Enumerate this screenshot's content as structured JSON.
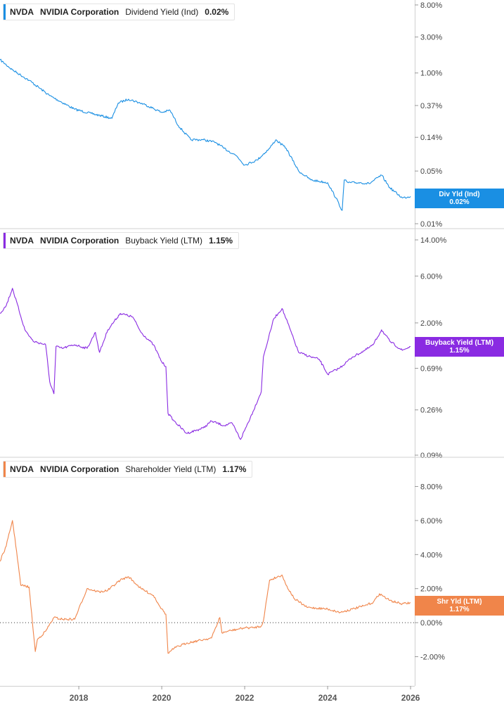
{
  "x_axis": {
    "tick_labels": [
      "2018",
      "2020",
      "2022",
      "2024",
      "2026"
    ],
    "range": [
      2016.1,
      2026.1
    ]
  },
  "chart_data": [
    {
      "type": "line",
      "ticker": "NVDA",
      "company": "NVIDIA Corporation",
      "metric": "Dividend Yield (Ind)",
      "current_value": "0.02%",
      "tag_label": "Div Yld (Ind)",
      "color": "#1a8fe3",
      "y_scale": "log",
      "y_ticks": [
        8.0,
        3.0,
        1.0,
        0.37,
        0.14,
        0.05,
        0.02,
        0.01
      ],
      "y_tick_labels": [
        "8.00%",
        "3.00%",
        "1.00%",
        "0.37%",
        "0.14%",
        "0.05%",
        "0.02%",
        "0.01%"
      ],
      "ylim": [
        0.01,
        8.0
      ],
      "series": [
        {
          "name": "Div Yld (Ind)",
          "x": [
            2016.1,
            2016.4,
            2016.8,
            2017.3,
            2017.9,
            2018.3,
            2018.8,
            2018.95,
            2019.2,
            2019.6,
            2020.0,
            2020.2,
            2020.4,
            2020.7,
            2021.0,
            2021.3,
            2021.5,
            2021.8,
            2022.0,
            2022.3,
            2022.6,
            2022.75,
            2023.0,
            2023.3,
            2023.6,
            2024.0,
            2024.2,
            2024.35,
            2024.4,
            2024.5,
            2024.8,
            2025.0,
            2025.3,
            2025.5,
            2025.8,
            2026.0
          ],
          "y": [
            1.5,
            1.1,
            0.8,
            0.5,
            0.33,
            0.29,
            0.25,
            0.4,
            0.45,
            0.38,
            0.3,
            0.32,
            0.2,
            0.13,
            0.13,
            0.12,
            0.1,
            0.08,
            0.06,
            0.07,
            0.1,
            0.13,
            0.1,
            0.05,
            0.038,
            0.035,
            0.022,
            0.015,
            0.038,
            0.035,
            0.035,
            0.034,
            0.044,
            0.03,
            0.022,
            0.023
          ]
        }
      ]
    },
    {
      "type": "line",
      "ticker": "NVDA",
      "company": "NVIDIA Corporation",
      "metric": "Buyback Yield (LTM)",
      "current_value": "1.15%",
      "tag_label": "Buyback Yield (LTM)",
      "color": "#8a2be2",
      "y_scale": "log",
      "y_ticks": [
        14.0,
        6.0,
        2.0,
        0.69,
        0.26,
        0.09
      ],
      "y_tick_labels": [
        "14.00%",
        "6.00%",
        "2.00%",
        "0.69%",
        "0.26%",
        "0.09%"
      ],
      "ylim": [
        0.09,
        14.0
      ],
      "series": [
        {
          "name": "Buyback Yield (LTM)",
          "x": [
            2016.1,
            2016.25,
            2016.4,
            2016.7,
            2016.9,
            2017.2,
            2017.3,
            2017.4,
            2017.45,
            2017.6,
            2017.9,
            2018.2,
            2018.4,
            2018.5,
            2018.7,
            2019.0,
            2019.3,
            2019.5,
            2019.8,
            2020.0,
            2020.1,
            2020.15,
            2020.3,
            2020.6,
            2021.0,
            2021.2,
            2021.5,
            2021.7,
            2021.9,
            2022.2,
            2022.4,
            2022.45,
            2022.7,
            2022.9,
            2023.0,
            2023.3,
            2023.6,
            2023.8,
            2024.0,
            2024.3,
            2024.6,
            2024.9,
            2025.1,
            2025.3,
            2025.5,
            2025.8,
            2026.0
          ],
          "y": [
            2.5,
            3.0,
            4.5,
            1.7,
            1.3,
            1.2,
            0.5,
            0.38,
            1.15,
            1.1,
            1.2,
            1.1,
            1.6,
            1.0,
            1.7,
            2.5,
            2.3,
            1.6,
            1.2,
            0.8,
            0.72,
            0.24,
            0.2,
            0.15,
            0.17,
            0.2,
            0.18,
            0.19,
            0.13,
            0.25,
            0.4,
            0.9,
            2.2,
            2.8,
            2.2,
            1.0,
            0.9,
            0.85,
            0.6,
            0.7,
            0.9,
            1.05,
            1.2,
            1.7,
            1.3,
            1.05,
            1.15
          ]
        }
      ]
    },
    {
      "type": "line",
      "ticker": "NVDA",
      "company": "NVIDIA Corporation",
      "metric": "Shareholder Yield (LTM)",
      "current_value": "1.17%",
      "tag_label": "Shr Yld (LTM)",
      "color": "#f0854a",
      "y_scale": "linear",
      "y_ticks": [
        8.0,
        6.0,
        4.0,
        2.0,
        0.0,
        -2.0
      ],
      "y_tick_labels": [
        "8.00%",
        "6.00%",
        "4.00%",
        "2.00%",
        "0.00%",
        "-2.00%"
      ],
      "ylim": [
        -2.6,
        8.6
      ],
      "reference_line": 0.0,
      "series": [
        {
          "name": "Shr Yld (LTM)",
          "x": [
            2016.1,
            2016.25,
            2016.4,
            2016.5,
            2016.6,
            2016.8,
            2016.95,
            2017.0,
            2017.2,
            2017.4,
            2017.6,
            2017.9,
            2018.2,
            2018.5,
            2018.7,
            2019.0,
            2019.2,
            2019.5,
            2019.8,
            2020.0,
            2020.1,
            2020.15,
            2020.3,
            2020.6,
            2021.0,
            2021.2,
            2021.4,
            2021.45,
            2021.6,
            2022.0,
            2022.2,
            2022.4,
            2022.45,
            2022.6,
            2022.9,
            2023.0,
            2023.2,
            2023.5,
            2024.0,
            2024.3,
            2024.6,
            2024.9,
            2025.1,
            2025.25,
            2025.5,
            2025.8,
            2026.0
          ],
          "y": [
            3.6,
            4.5,
            6.0,
            4.2,
            2.2,
            2.1,
            -1.7,
            -1.0,
            -0.5,
            0.3,
            0.2,
            0.2,
            2.0,
            1.8,
            1.9,
            2.5,
            2.7,
            2.0,
            1.6,
            0.8,
            0.5,
            -1.8,
            -1.5,
            -1.2,
            -1.0,
            -0.9,
            0.3,
            -0.6,
            -0.5,
            -0.3,
            -0.3,
            -0.2,
            0.1,
            2.5,
            2.8,
            2.2,
            1.4,
            0.9,
            0.8,
            0.6,
            0.8,
            1.0,
            1.2,
            1.7,
            1.3,
            1.1,
            1.17
          ]
        }
      ]
    }
  ]
}
